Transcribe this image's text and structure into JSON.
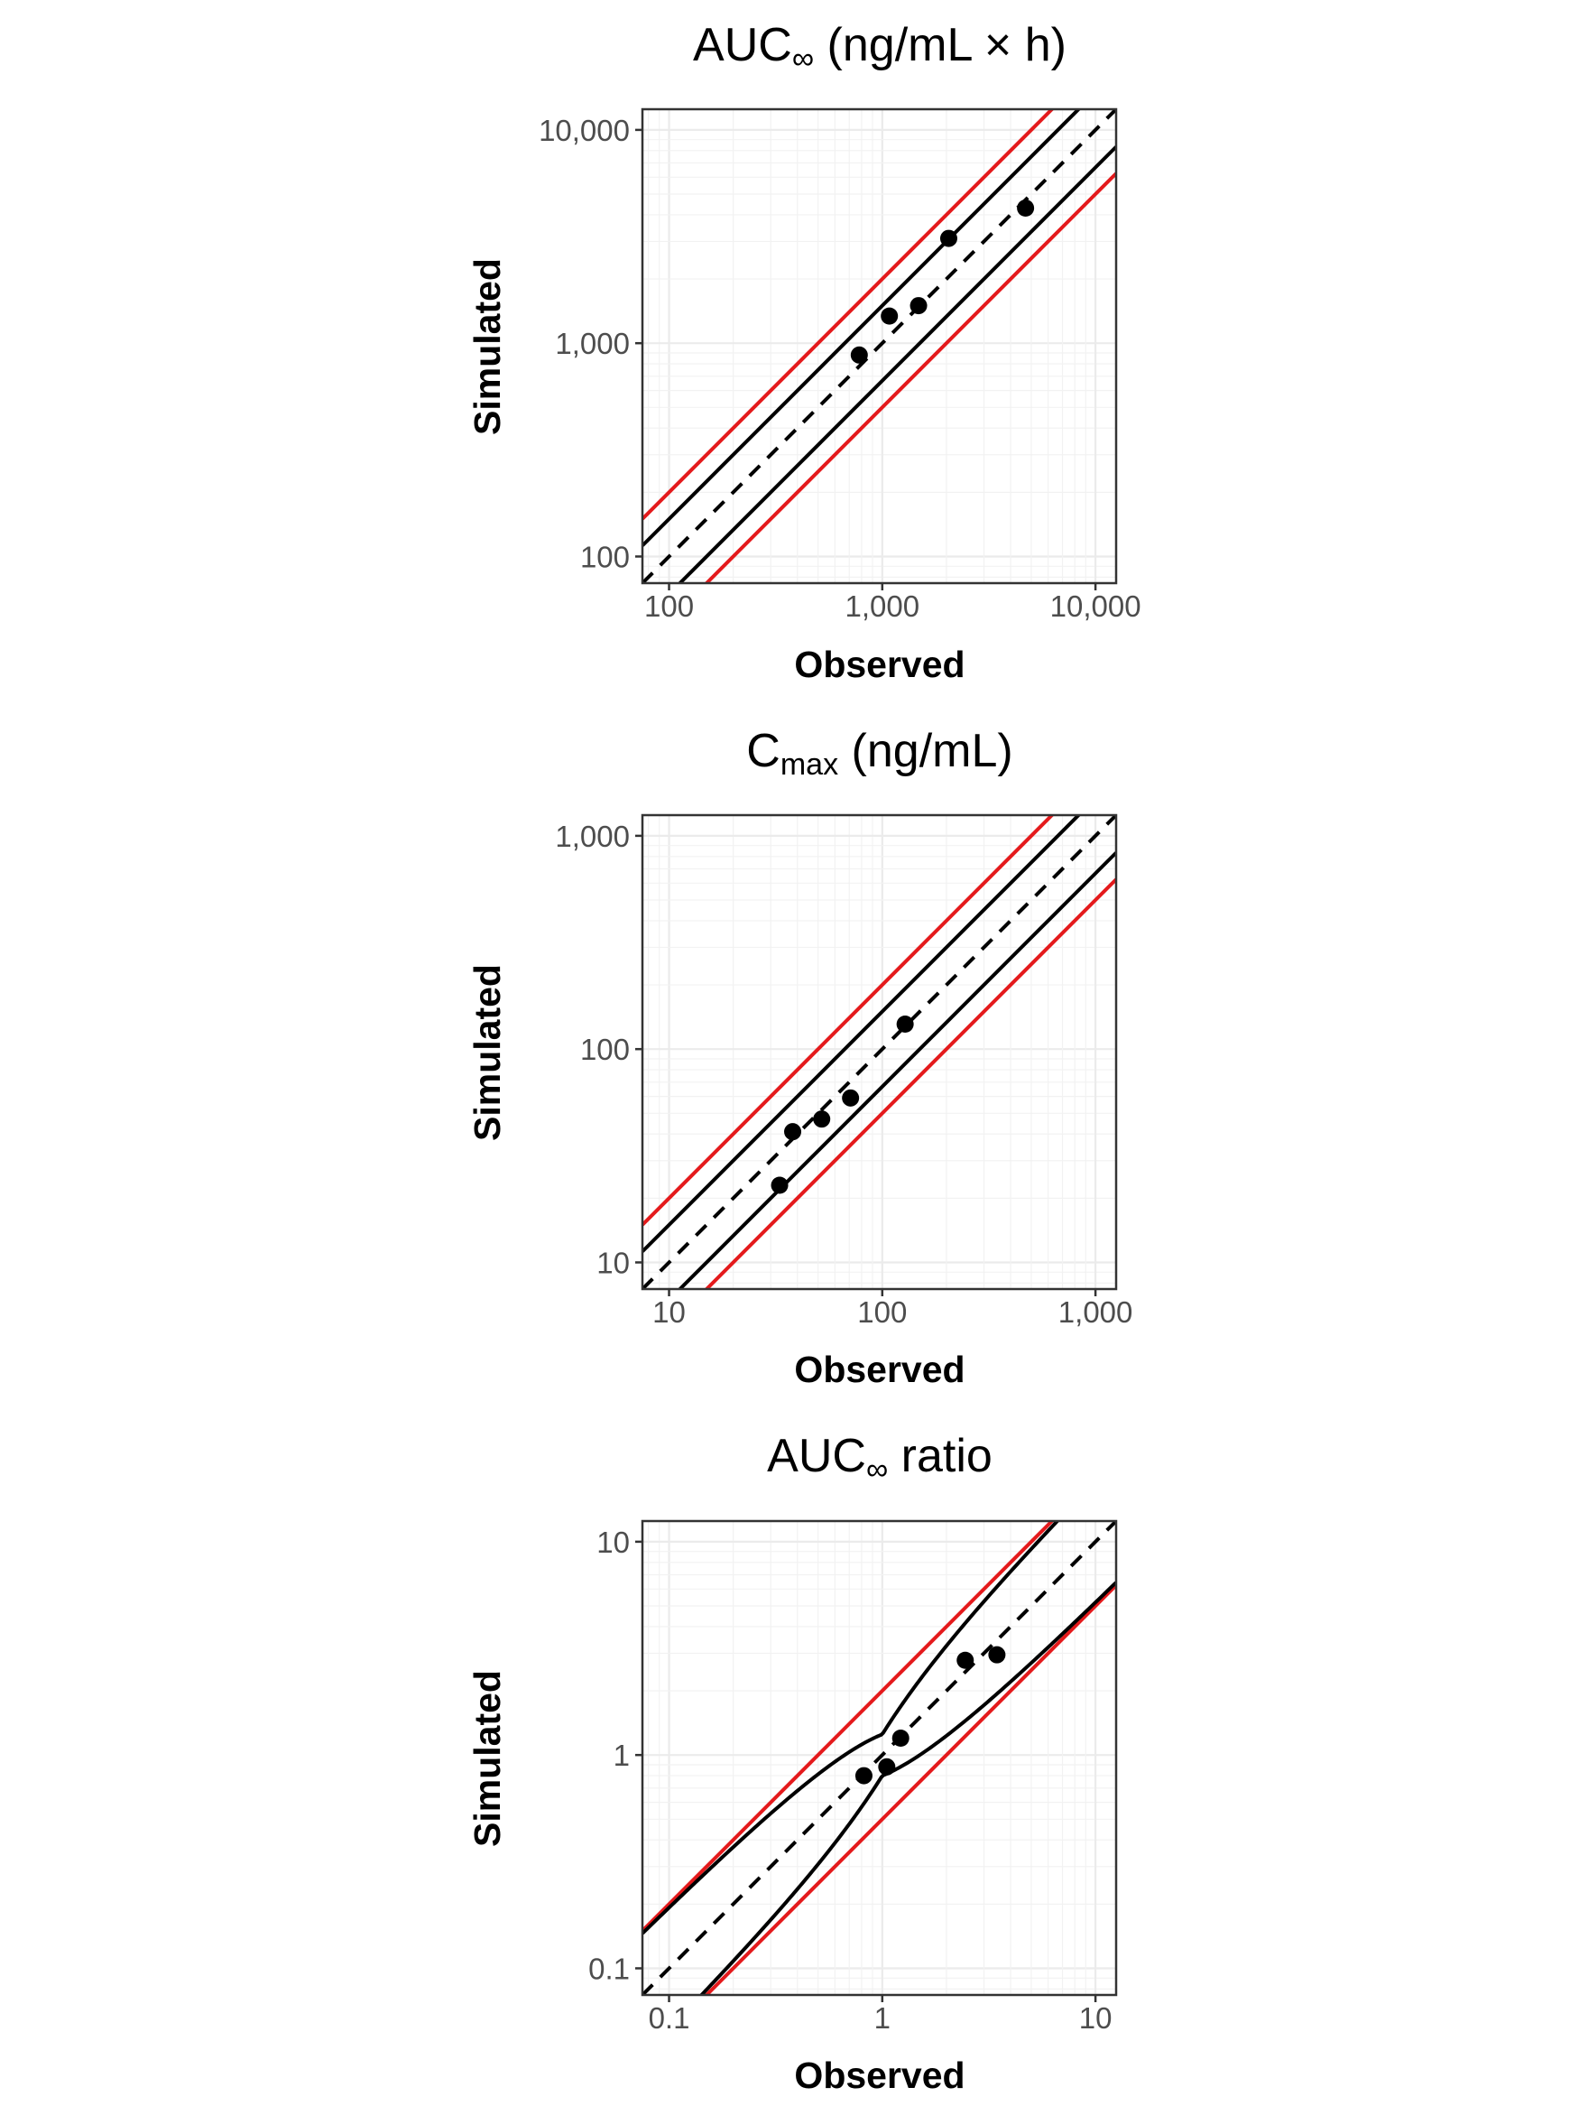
{
  "chart_data": [
    {
      "type": "scatter",
      "title": "AUC∞ (ng/mL × h)",
      "title_parts": {
        "main": "AUC",
        "sub": "∞",
        "unit": " (ng/mL × h)"
      },
      "xlabel": "Observed",
      "ylabel": "Simulated",
      "xscale": "log10",
      "yscale": "log10",
      "xlim": [
        75,
        12500
      ],
      "ylim": [
        75,
        12500
      ],
      "ticks": [
        100,
        1000,
        10000
      ],
      "tick_labels": [
        "100",
        "1,000",
        "10,000"
      ],
      "grid": true,
      "reference_lines": {
        "identity": {
          "style": "dashed",
          "color": "#000000",
          "fold": 1
        },
        "black_bounds": {
          "color": "#000000",
          "fold": 1.5
        },
        "red_bounds": {
          "color": "#e41a1c",
          "fold": 2
        }
      },
      "points": [
        {
          "x": 780,
          "y": 880
        },
        {
          "x": 1080,
          "y": 1340
        },
        {
          "x": 1480,
          "y": 1500
        },
        {
          "x": 2050,
          "y": 3100
        },
        {
          "x": 4700,
          "y": 4300
        }
      ]
    },
    {
      "type": "scatter",
      "title": "Cmax (ng/mL)",
      "title_parts": {
        "main": "C",
        "sub": "max",
        "unit": " (ng/mL)"
      },
      "xlabel": "Observed",
      "ylabel": "Simulated",
      "xscale": "log10",
      "yscale": "log10",
      "xlim": [
        7.5,
        1250
      ],
      "ylim": [
        7.5,
        1250
      ],
      "ticks": [
        10,
        100,
        1000
      ],
      "tick_labels": [
        "10",
        "100",
        "1,000"
      ],
      "grid": true,
      "reference_lines": {
        "identity": {
          "style": "dashed",
          "color": "#000000",
          "fold": 1
        },
        "black_bounds": {
          "color": "#000000",
          "fold": 1.5
        },
        "red_bounds": {
          "color": "#e41a1c",
          "fold": 2
        }
      },
      "points": [
        {
          "x": 33,
          "y": 23
        },
        {
          "x": 38,
          "y": 41
        },
        {
          "x": 52,
          "y": 47
        },
        {
          "x": 71,
          "y": 59
        },
        {
          "x": 128,
          "y": 131
        }
      ]
    },
    {
      "type": "scatter",
      "title": "AUC∞ ratio",
      "title_parts": {
        "main": "AUC",
        "sub": "∞",
        "unit": " ratio"
      },
      "xlabel": "Observed",
      "ylabel": "Simulated",
      "xscale": "log10",
      "yscale": "log10",
      "xlim": [
        0.075,
        12.5
      ],
      "ylim": [
        0.075,
        12.5
      ],
      "ticks": [
        0.1,
        1,
        10
      ],
      "tick_labels": [
        "0.1",
        "1",
        "10"
      ],
      "grid": true,
      "reference_lines": {
        "identity": {
          "style": "dashed",
          "color": "#000000",
          "fold": 1
        },
        "black_bounds": {
          "color": "#000000",
          "type": "guest_limits",
          "delta": 1.25
        },
        "red_bounds": {
          "color": "#e41a1c",
          "fold": 2
        }
      },
      "points": [
        {
          "x": 0.82,
          "y": 0.8
        },
        {
          "x": 1.05,
          "y": 0.88
        },
        {
          "x": 1.22,
          "y": 1.2
        },
        {
          "x": 2.45,
          "y": 2.78
        },
        {
          "x": 3.45,
          "y": 2.95
        }
      ]
    }
  ]
}
